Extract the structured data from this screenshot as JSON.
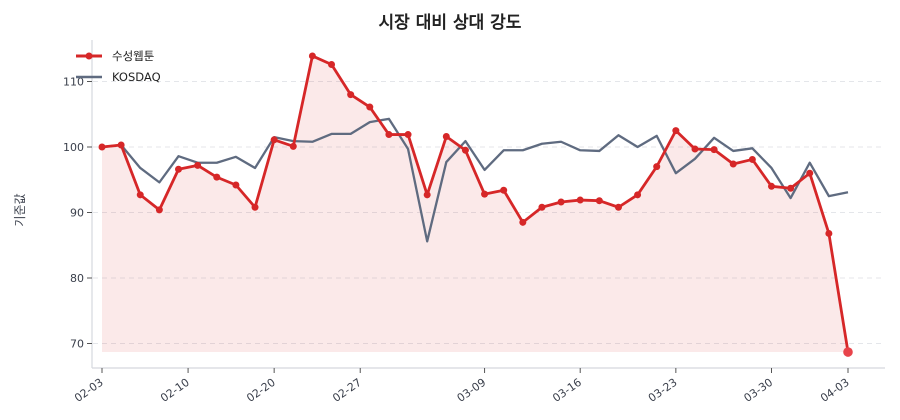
{
  "chart_data": {
    "type": "line",
    "title": "시장 대비 상대 강도",
    "xlabel": "",
    "ylabel": "기준값",
    "ylim": [
      66.5,
      116.5
    ],
    "yticks": [
      70,
      80,
      90,
      100,
      110
    ],
    "grid": "horizontal dashed",
    "legend_position": "upper left",
    "x_tick_labels": [
      "02-03",
      "02-10",
      "02-20",
      "02-27",
      "03-09",
      "03-16",
      "03-23",
      "03-30",
      "04-03"
    ],
    "x_tick_indices": [
      0,
      4.5,
      9,
      13.5,
      20,
      25,
      30,
      35,
      39
    ],
    "x_count": 40,
    "series": [
      {
        "name": "수성웹툰",
        "color": "#d62728",
        "marker": "circle",
        "fill_to": 68.7,
        "values": [
          100.0,
          100.3,
          92.7,
          90.4,
          96.6,
          97.2,
          95.4,
          94.2,
          90.8,
          101.1,
          100.1,
          113.9,
          112.6,
          108.0,
          106.1,
          101.9,
          101.9,
          92.7,
          101.6,
          99.5,
          92.8,
          93.4,
          88.5,
          90.8,
          91.6,
          91.9,
          91.8,
          90.8,
          92.7,
          97.0,
          102.5,
          99.7,
          99.6,
          97.4,
          98.1,
          94.0,
          93.7,
          96.0,
          86.8,
          68.7
        ]
      },
      {
        "name": "KOSDAQ",
        "color": "#5f6b80",
        "marker": "none",
        "values": [
          100.0,
          100.3,
          96.8,
          94.6,
          98.6,
          97.6,
          97.6,
          98.5,
          96.8,
          101.5,
          100.9,
          100.8,
          102.0,
          102.0,
          103.8,
          104.3,
          99.7,
          85.6,
          97.7,
          100.9,
          96.5,
          99.5,
          99.5,
          100.5,
          100.8,
          99.5,
          99.4,
          101.8,
          100.0,
          101.7,
          96.0,
          98.2,
          101.4,
          99.4,
          99.8,
          96.8,
          92.2,
          97.6,
          92.5,
          93.1
        ]
      }
    ]
  }
}
